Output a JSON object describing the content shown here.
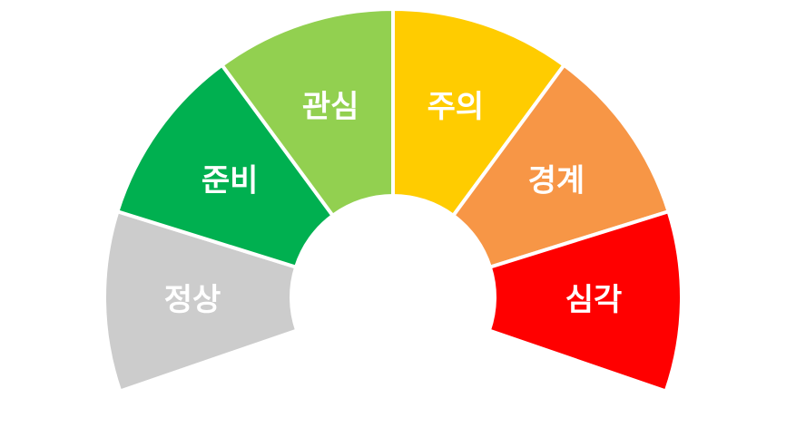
{
  "gauge": {
    "segments": [
      {
        "label": "정상",
        "color": "#cccccc"
      },
      {
        "label": "준비",
        "color": "#00b050"
      },
      {
        "label": "관심",
        "color": "#92d050"
      },
      {
        "label": "주의",
        "color": "#ffcc00"
      },
      {
        "label": "경계",
        "color": "#f79646"
      },
      {
        "label": "심각",
        "color": "#ff0000"
      }
    ]
  }
}
